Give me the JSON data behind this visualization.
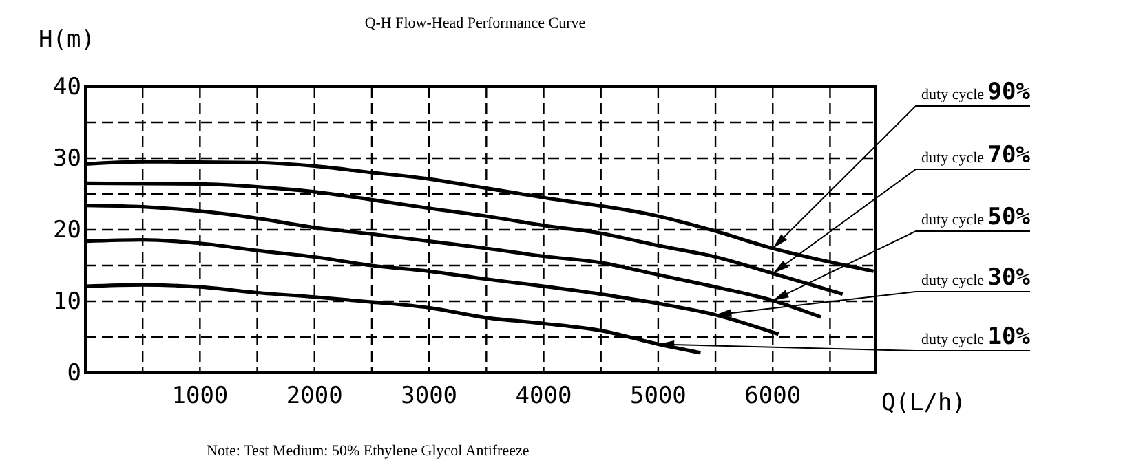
{
  "chart_data": {
    "type": "line",
    "title": "Q-H Flow-Head Performance Curve",
    "xlabel": "Q(L/h)",
    "ylabel": "H(m)",
    "annotations": [
      "Note: Test Medium: 50% Ethylene Glycol Antifreeze"
    ],
    "xlim": [
      0,
      6900
    ],
    "ylim": [
      0,
      40
    ],
    "xticks": [
      {
        "value": 500,
        "label": null
      },
      1000,
      {
        "value": 1500,
        "label": null
      },
      2000,
      {
        "value": 2500,
        "label": null
      },
      3000,
      {
        "value": 3500,
        "label": null
      },
      4000,
      {
        "value": 4500,
        "label": null
      },
      5000,
      {
        "value": 5500,
        "label": null
      },
      6000,
      {
        "value": 6500,
        "label": null
      }
    ],
    "yticks": [
      0,
      {
        "value": 5,
        "label": null
      },
      10,
      {
        "value": 15,
        "label": null
      },
      20,
      {
        "value": 25,
        "label": null
      },
      30,
      {
        "value": 35,
        "label": null
      },
      40
    ],
    "grid": true,
    "marker": "none",
    "line_style": "solid",
    "series": [
      {
        "name": "duty cycle 90%",
        "color": "#000000",
        "x": [
          0,
          500,
          1500,
          2000,
          2500,
          3000,
          3500,
          4000,
          5000,
          5500,
          6000,
          6880
        ],
        "values": [
          29.2,
          29.5,
          29.4,
          28.9,
          28.0,
          27.1,
          25.8,
          24.5,
          21.9,
          19.8,
          17.4,
          14.2
        ]
      },
      {
        "name": "duty cycle 70%",
        "color": "#000000",
        "x": [
          0,
          1000,
          1500,
          2000,
          2500,
          3000,
          3500,
          4000,
          4500,
          5000,
          5500,
          6000,
          6610
        ],
        "values": [
          26.5,
          26.4,
          26.0,
          25.3,
          24.2,
          23.0,
          21.9,
          20.6,
          19.5,
          17.8,
          16.2,
          13.9,
          11.0
        ]
      },
      {
        "name": "duty cycle 50%",
        "color": "#000000",
        "x": [
          0,
          500,
          1000,
          1500,
          2000,
          2500,
          3000,
          3500,
          4000,
          4500,
          5000,
          5500,
          6000,
          6420
        ],
        "values": [
          23.4,
          23.2,
          22.6,
          21.6,
          20.3,
          19.4,
          18.4,
          17.4,
          16.3,
          15.4,
          13.7,
          12.0,
          10.1,
          7.8
        ]
      },
      {
        "name": "duty cycle 30%",
        "color": "#000000",
        "x": [
          0,
          500,
          1000,
          1500,
          2000,
          2500,
          3000,
          3500,
          4000,
          4500,
          5000,
          5500,
          6050
        ],
        "values": [
          18.4,
          18.6,
          18.1,
          17.1,
          16.2,
          15.0,
          14.2,
          13.1,
          12.1,
          11.0,
          9.7,
          8.1,
          5.4
        ]
      },
      {
        "name": "duty cycle 10%",
        "color": "#000000",
        "x": [
          0,
          500,
          1000,
          1500,
          2000,
          2500,
          3000,
          3500,
          4000,
          4500,
          5000,
          5370
        ],
        "values": [
          12.1,
          12.3,
          12.0,
          11.2,
          10.6,
          9.9,
          9.1,
          7.7,
          6.9,
          5.9,
          4.0,
          2.8
        ]
      }
    ]
  }
}
